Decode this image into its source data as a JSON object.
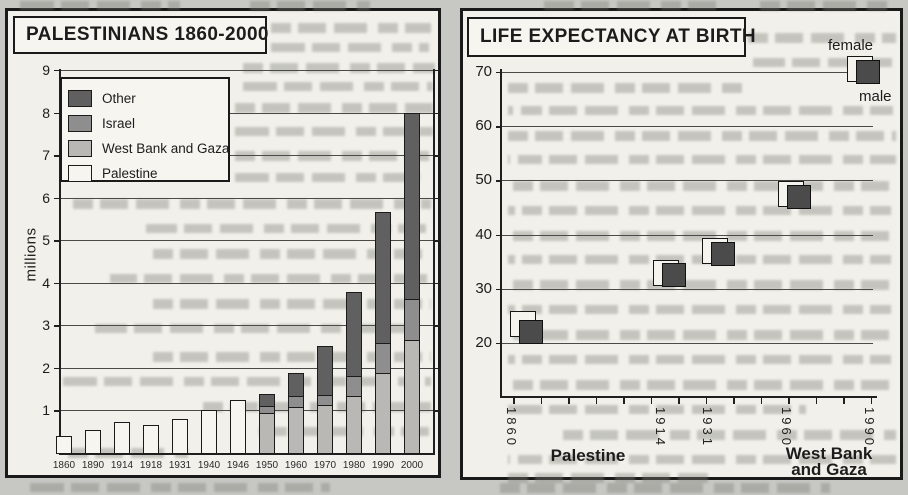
{
  "ui": {
    "y_axis_label_left": "millions",
    "female_label": "female",
    "male_label": "male",
    "region_left": "Palestine",
    "region_right_line1": "West Bank",
    "region_right_line2": "and Gaza"
  },
  "colors": {
    "page_bg": "#c7c7c3",
    "panel_bg": "#f1f0ea",
    "ink": "#1c1c1c",
    "other": "#606060",
    "israel": "#8e8e8e",
    "west_bank_gaza": "#b9b8b4",
    "palestine": "#f6f5ef",
    "male_marker": "#4b4b4b",
    "female_marker": "#f4f3ee"
  },
  "chart_data": [
    {
      "type": "bar",
      "stacked": true,
      "title": "PALESTINIANS 1860-2000",
      "ylabel": "millions",
      "ylim": [
        0,
        9
      ],
      "y_ticks": [
        1,
        2,
        3,
        4,
        5,
        6,
        7,
        8,
        9
      ],
      "grid": true,
      "categories": [
        "1860",
        "1890",
        "1914",
        "1918",
        "1931",
        "1940",
        "1946",
        "1950",
        "1960",
        "1970",
        "1980",
        "1990",
        "2000"
      ],
      "series": [
        {
          "name": "Palestine",
          "values": [
            0.4,
            0.53,
            0.72,
            0.66,
            0.8,
            1.02,
            1.25,
            0,
            0,
            0,
            0,
            0,
            0
          ]
        },
        {
          "name": "West Bank and Gaza",
          "values": [
            0,
            0,
            0,
            0,
            0,
            0,
            0,
            0.93,
            1.08,
            1.13,
            1.35,
            1.87,
            2.65
          ]
        },
        {
          "name": "Israel",
          "values": [
            0,
            0,
            0,
            0,
            0,
            0,
            0,
            0.18,
            0.25,
            0.24,
            0.47,
            0.71,
            0.98
          ]
        },
        {
          "name": "Other",
          "values": [
            0,
            0,
            0,
            0,
            0,
            0,
            0,
            0.28,
            0.54,
            1.15,
            1.97,
            3.09,
            4.37
          ]
        }
      ],
      "legend_order_top_to_bottom": [
        "Other",
        "Israel",
        "West Bank and Gaza",
        "Palestine"
      ]
    },
    {
      "type": "scatter",
      "title": "LIFE EXPECTANCY AT BIRTH",
      "marker": "square",
      "grid": true,
      "x": [
        1860,
        1914,
        1931,
        1960,
        1990
      ],
      "x_axis_range": [
        1860,
        1990
      ],
      "x_tick_interval_years": 10,
      "ylim": [
        20,
        70
      ],
      "y_ticks": [
        20,
        30,
        40,
        50,
        60,
        70
      ],
      "series": [
        {
          "name": "female",
          "values": [
            23.5,
            33,
            37,
            47.5,
            70.5
          ]
        },
        {
          "name": "male",
          "values": [
            22,
            32.5,
            36.5,
            47,
            70
          ]
        }
      ],
      "region_labels": [
        "Palestine",
        "West Bank and Gaza"
      ]
    }
  ]
}
